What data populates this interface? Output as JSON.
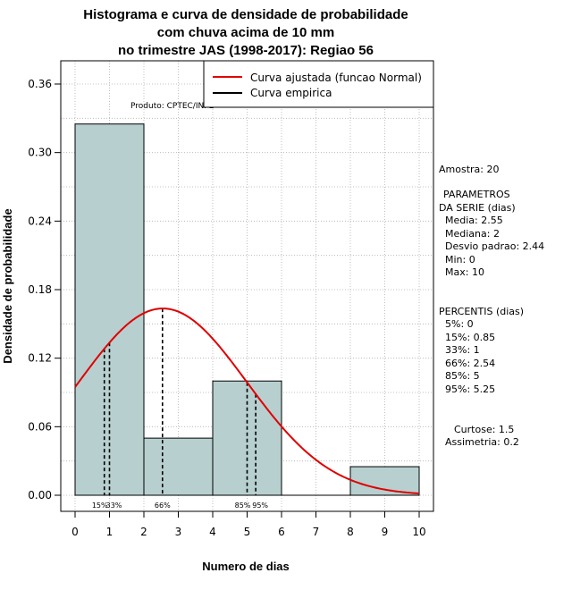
{
  "chart_data": {
    "type": "bar",
    "title_lines": [
      "Histograma e curva de densidade de probabilidade",
      "com chuva acima de 10 mm",
      "no trimestre JAS (1998-2017): Regiao 56"
    ],
    "xlabel": "Numero de dias",
    "ylabel": "Densidade de probabilidade",
    "xlim": [
      -0.4,
      10.4
    ],
    "ylim": [
      0,
      0.37
    ],
    "x_ticks": [
      0,
      1,
      2,
      3,
      4,
      5,
      6,
      7,
      8,
      9,
      10
    ],
    "y_ticks": [
      0.0,
      0.06,
      0.12,
      0.18,
      0.24,
      0.3,
      0.36
    ],
    "y_tick_labels": [
      "0.00",
      "0.06",
      "0.12",
      "0.18",
      "0.24",
      "0.30",
      "0.36"
    ],
    "grid": true,
    "bins": [
      {
        "from": 0,
        "to": 2,
        "density": 0.325
      },
      {
        "from": 2,
        "to": 4,
        "density": 0.05
      },
      {
        "from": 4,
        "to": 6,
        "density": 0.1
      },
      {
        "from": 6,
        "to": 8,
        "density": 0.0
      },
      {
        "from": 8,
        "to": 10,
        "density": 0.025
      }
    ],
    "bar_color": "#b7cfcf",
    "fit_curve": {
      "distribution": "normal",
      "mean": 2.55,
      "sd": 2.44,
      "color": "#e00000"
    },
    "percentile_lines": [
      {
        "label": "15%",
        "x": 0.85
      },
      {
        "label": "33%",
        "x": 1
      },
      {
        "label": "66%",
        "x": 2.54
      },
      {
        "label": "85%",
        "x": 5
      },
      {
        "label": "95%",
        "x": 5.25
      }
    ],
    "source_note": "Produto: CPTEC/INPE",
    "legend": {
      "position": "top-right",
      "entries": [
        {
          "label": "Curva ajustada (funcao Normal)",
          "color": "#e00000"
        },
        {
          "label": "Curva empirica",
          "color": "#000000"
        }
      ]
    }
  },
  "stats_panel": {
    "sample": "Amostra: 20",
    "params_title_1": "PARAMETROS",
    "params_title_2": "DA SERIE (dias)",
    "mean": "Media: 2.55",
    "median": "Mediana: 2",
    "sd": "Desvio padrao: 2.44",
    "min": "Min: 0",
    "max": "Max: 10",
    "percentis_title": "PERCENTIS (dias)",
    "p5": "5%: 0",
    "p15": "15%: 0.85",
    "p33": "33%: 1",
    "p66": "66%: 2.54",
    "p85": "85%: 5",
    "p95": "95%: 5.25",
    "kurtosis": "Curtose: 1.5",
    "skewness": "Assimetria: 0.2"
  }
}
